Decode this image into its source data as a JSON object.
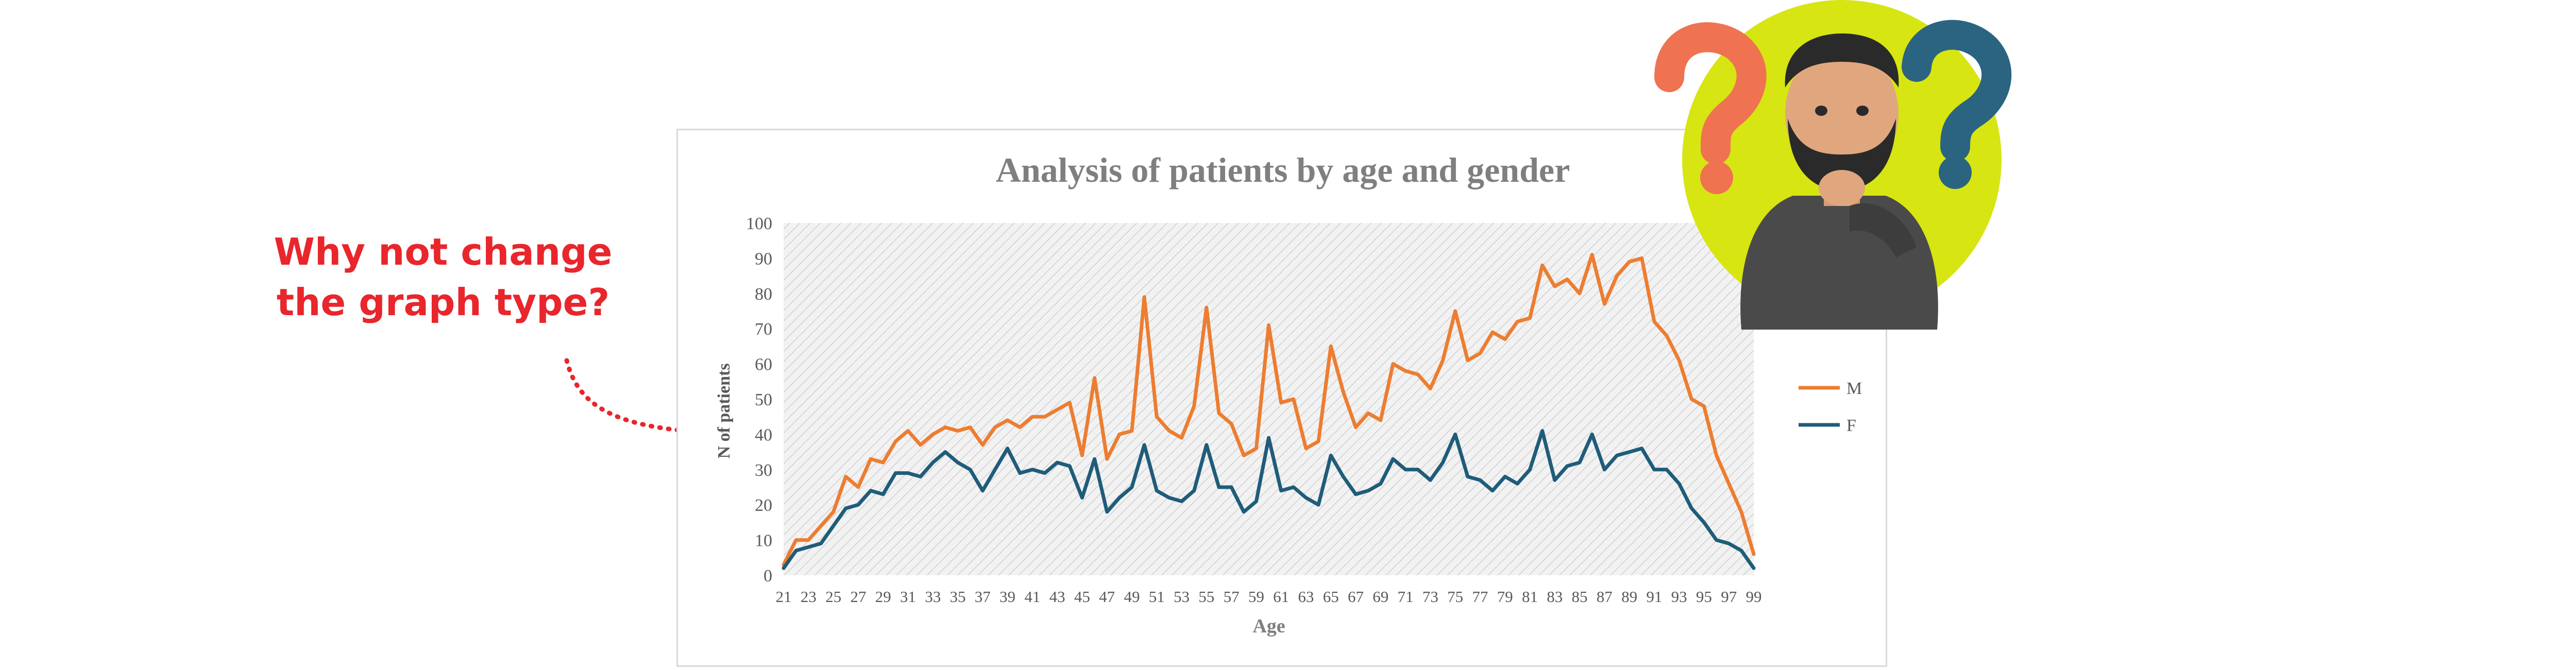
{
  "callout": {
    "line1": "Why not change",
    "line2": "the graph type?"
  },
  "colors": {
    "callout": "#e8262c",
    "series_m": "#ed7d31",
    "series_f": "#1f5c7a",
    "badge_bg": "#d7e512",
    "question_orange": "#ef7350",
    "question_teal": "#2b6480"
  },
  "chart_data": {
    "type": "line",
    "title": "Analysis of patients by age and gender",
    "xlabel": "Age",
    "ylabel": "N of patients",
    "ylim": [
      0,
      100
    ],
    "yticks": [
      0,
      10,
      20,
      30,
      40,
      50,
      60,
      70,
      80,
      90,
      100
    ],
    "x": [
      21,
      22,
      23,
      24,
      25,
      26,
      27,
      28,
      29,
      30,
      31,
      32,
      33,
      34,
      35,
      36,
      37,
      38,
      39,
      40,
      41,
      42,
      43,
      44,
      45,
      46,
      47,
      48,
      49,
      50,
      51,
      52,
      53,
      54,
      55,
      56,
      57,
      58,
      59,
      60,
      61,
      62,
      63,
      64,
      65,
      66,
      67,
      68,
      69,
      70,
      71,
      72,
      73,
      74,
      75,
      76,
      77,
      78,
      79,
      80,
      81,
      82,
      83,
      84,
      85,
      86,
      87,
      88,
      89,
      90,
      91,
      92,
      93,
      94,
      95,
      96,
      97,
      98,
      99
    ],
    "xtick_labels": [
      "21",
      "23",
      "25",
      "27",
      "29",
      "31",
      "33",
      "35",
      "37",
      "39",
      "41",
      "43",
      "45",
      "47",
      "49",
      "51",
      "53",
      "55",
      "57",
      "59",
      "61",
      "63",
      "65",
      "67",
      "69",
      "71",
      "73",
      "75",
      "77",
      "79",
      "81",
      "83",
      "85",
      "87",
      "89",
      "91",
      "93",
      "95",
      "97",
      "99"
    ],
    "grid": false,
    "plot_area_pattern": "diagonal-hatch",
    "legend_position": "right",
    "series": [
      {
        "name": "M",
        "color": "#ed7d31",
        "values": [
          3,
          10,
          10,
          14,
          18,
          28,
          25,
          33,
          32,
          38,
          41,
          37,
          40,
          42,
          41,
          42,
          37,
          42,
          44,
          42,
          45,
          45,
          47,
          49,
          34,
          56,
          33,
          40,
          41,
          79,
          45,
          41,
          39,
          48,
          76,
          46,
          43,
          34,
          36,
          71,
          49,
          50,
          36,
          38,
          65,
          52,
          42,
          46,
          44,
          60,
          58,
          57,
          53,
          61,
          75,
          61,
          63,
          69,
          67,
          72,
          73,
          88,
          82,
          84,
          80,
          91,
          77,
          85,
          89,
          90,
          72,
          68,
          61,
          50,
          48,
          34,
          26,
          18,
          6
        ]
      },
      {
        "name": "F",
        "color": "#1f5c7a",
        "values": [
          2,
          7,
          8,
          9,
          14,
          19,
          20,
          24,
          23,
          29,
          29,
          28,
          32,
          35,
          32,
          30,
          24,
          30,
          36,
          29,
          30,
          29,
          32,
          31,
          22,
          33,
          18,
          22,
          25,
          37,
          24,
          22,
          21,
          24,
          37,
          25,
          25,
          18,
          21,
          39,
          24,
          25,
          22,
          20,
          34,
          28,
          23,
          24,
          26,
          33,
          30,
          30,
          27,
          32,
          40,
          28,
          27,
          24,
          28,
          26,
          30,
          41,
          27,
          31,
          32,
          40,
          30,
          34,
          35,
          36,
          30,
          30,
          26,
          19,
          15,
          10,
          9,
          7,
          2
        ]
      }
    ]
  }
}
